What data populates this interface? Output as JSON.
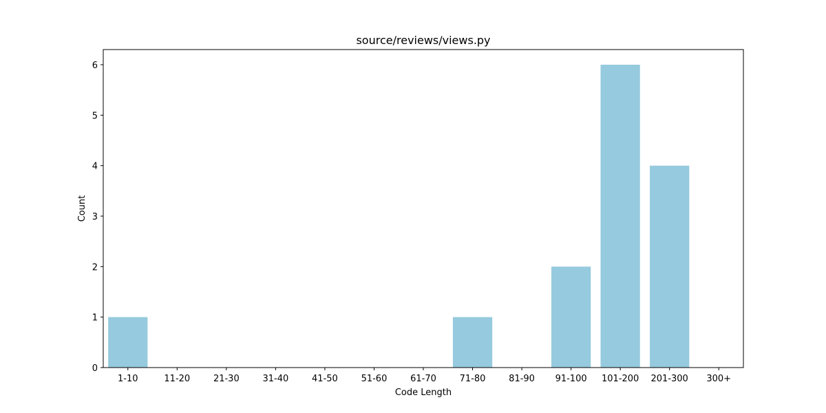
{
  "chart_data": {
    "type": "bar",
    "title": "source/reviews/views.py",
    "xlabel": "Code Length",
    "ylabel": "Count",
    "categories": [
      "1-10",
      "11-20",
      "21-30",
      "31-40",
      "41-50",
      "51-60",
      "61-70",
      "71-80",
      "81-90",
      "91-100",
      "101-200",
      "201-300",
      "300+"
    ],
    "values": [
      1,
      0,
      0,
      0,
      0,
      0,
      0,
      1,
      0,
      2,
      6,
      4,
      0
    ],
    "ylim": [
      0,
      6.3
    ],
    "yticks": [
      0,
      1,
      2,
      3,
      4,
      5,
      6
    ],
    "bar_color": "#96cade",
    "grid": false,
    "legend": "none"
  }
}
